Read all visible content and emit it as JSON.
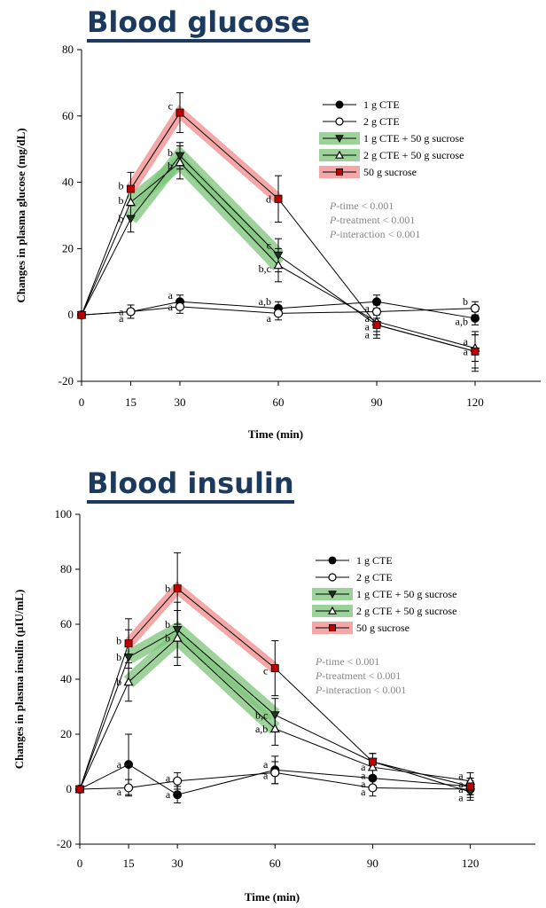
{
  "headings": {
    "glucose": "Blood glucose",
    "insulin": "Blood insulin"
  },
  "colors": {
    "heading": "#1c3a5e",
    "highlight_green": "#7cc47a",
    "highlight_red": "#f08a8a",
    "sucrose_marker": "#c00000"
  },
  "chart_data": [
    {
      "type": "line",
      "title": "Blood glucose",
      "xlabel": "Time (min)",
      "ylabel": "Changes in plasma glucose (mg/dL)",
      "x": [
        0,
        15,
        30,
        60,
        90,
        120
      ],
      "xticks": [
        "0",
        "15",
        "30",
        "60",
        "90",
        "120"
      ],
      "xlim": [
        0,
        140
      ],
      "ylim": [
        -20,
        80
      ],
      "yticks": [
        -20,
        0,
        20,
        40,
        60,
        80
      ],
      "grid": false,
      "legend_position": "top-right",
      "stats": [
        "P-time < 0.001",
        "P-treatment < 0.001",
        "P-interaction < 0.001"
      ],
      "series": [
        {
          "name": "1 g CTE",
          "marker": "circle-filled",
          "values": [
            0,
            1,
            4,
            2,
            4,
            -1
          ],
          "errors": [
            0,
            2,
            2,
            2,
            2,
            2
          ]
        },
        {
          "name": "2 g CTE",
          "marker": "circle-open",
          "values": [
            0,
            1,
            2.5,
            0.5,
            1,
            2
          ],
          "errors": [
            0,
            2,
            2,
            2,
            2,
            2
          ]
        },
        {
          "name": "1 g CTE + 50 g sucrose",
          "marker": "triangle-down-filled",
          "values": [
            0,
            29,
            48,
            18,
            -3,
            -11
          ],
          "errors": [
            0,
            4,
            4,
            5,
            3,
            5
          ],
          "highlight": "green"
        },
        {
          "name": "2 g CTE + 50 g sucrose",
          "marker": "triangle-up-open",
          "values": [
            0,
            34,
            46,
            15,
            -2,
            -10
          ],
          "errors": [
            0,
            4,
            5,
            5,
            3,
            4
          ],
          "highlight": "green"
        },
        {
          "name": "50 g sucrose",
          "marker": "square-filled",
          "values": [
            0,
            38,
            61,
            35,
            -3,
            -11
          ],
          "errors": [
            0,
            5,
            6,
            7,
            4,
            6
          ],
          "highlight": "red"
        }
      ],
      "annotations": [
        {
          "x": 15,
          "y": 39,
          "text": "b"
        },
        {
          "x": 15,
          "y": 34.5,
          "text": "b"
        },
        {
          "x": 15,
          "y": 29,
          "text": "b"
        },
        {
          "x": 15,
          "y": 1,
          "text": "a"
        },
        {
          "x": 15,
          "y": -1,
          "text": "a"
        },
        {
          "x": 30,
          "y": 63,
          "text": "c"
        },
        {
          "x": 30,
          "y": 49,
          "text": "b"
        },
        {
          "x": 30,
          "y": 45,
          "text": "b"
        },
        {
          "x": 30,
          "y": 6,
          "text": "a"
        },
        {
          "x": 30,
          "y": 2.5,
          "text": "a"
        },
        {
          "x": 60,
          "y": 35,
          "text": "d"
        },
        {
          "x": 60,
          "y": 21,
          "text": "c"
        },
        {
          "x": 60,
          "y": 14,
          "text": "b,c"
        },
        {
          "x": 60,
          "y": 4,
          "text": "a,b"
        },
        {
          "x": 60,
          "y": -1,
          "text": "a"
        },
        {
          "x": 90,
          "y": 2,
          "text": "a"
        },
        {
          "x": 90,
          "y": -1,
          "text": "a"
        },
        {
          "x": 90,
          "y": -3.5,
          "text": "a"
        },
        {
          "x": 90,
          "y": -6,
          "text": "a"
        },
        {
          "x": 120,
          "y": 4,
          "text": "b"
        },
        {
          "x": 120,
          "y": -2,
          "text": "a,b"
        },
        {
          "x": 120,
          "y": -8,
          "text": "a"
        },
        {
          "x": 120,
          "y": -11,
          "text": "a"
        }
      ]
    },
    {
      "type": "line",
      "title": "Blood insulin",
      "xlabel": "Time (min)",
      "ylabel": "Changes in plasma insulin (µIU/mL)",
      "x": [
        0,
        15,
        30,
        60,
        90,
        120
      ],
      "xticks": [
        "0",
        "15",
        "30",
        "60",
        "90",
        "120"
      ],
      "xlim": [
        0,
        140
      ],
      "ylim": [
        -20,
        100
      ],
      "yticks": [
        -20,
        0,
        20,
        40,
        60,
        80,
        100
      ],
      "grid": false,
      "legend_position": "top-right",
      "stats": [
        "P-time < 0.001",
        "P-treatment < 0.001",
        "P-interaction < 0.001"
      ],
      "series": [
        {
          "name": "1 g CTE",
          "marker": "circle-filled",
          "values": [
            0,
            9,
            -2,
            7,
            4,
            1
          ],
          "errors": [
            0,
            11,
            3,
            5,
            3,
            3
          ]
        },
        {
          "name": "2 g CTE",
          "marker": "circle-open",
          "values": [
            0,
            0.5,
            3,
            6,
            0.5,
            0
          ],
          "errors": [
            0,
            3,
            3,
            4,
            3,
            3
          ]
        },
        {
          "name": "1 g CTE + 50 g sucrose",
          "marker": "triangle-down-filled",
          "values": [
            0,
            48,
            58,
            27,
            10,
            -1
          ],
          "errors": [
            0,
            10,
            10,
            6,
            3,
            3
          ],
          "highlight": "green"
        },
        {
          "name": "2 g CTE + 50 g sucrose",
          "marker": "triangle-up-open",
          "values": [
            0,
            39,
            55,
            22,
            8,
            3
          ],
          "errors": [
            0,
            7,
            10,
            6,
            3,
            3
          ],
          "highlight": "green"
        },
        {
          "name": "50 g sucrose",
          "marker": "square-filled",
          "values": [
            0,
            53,
            73,
            44,
            10,
            1
          ],
          "errors": [
            0,
            9,
            13,
            10,
            3,
            3
          ],
          "highlight": "red"
        }
      ],
      "annotations": [
        {
          "x": 15,
          "y": 54,
          "text": "b"
        },
        {
          "x": 15,
          "y": 48,
          "text": "b"
        },
        {
          "x": 15,
          "y": 39,
          "text": "b"
        },
        {
          "x": 15,
          "y": 9,
          "text": "a"
        },
        {
          "x": 15,
          "y": -1,
          "text": "a"
        },
        {
          "x": 30,
          "y": 73,
          "text": "b"
        },
        {
          "x": 30,
          "y": 60,
          "text": "b"
        },
        {
          "x": 30,
          "y": 55,
          "text": "b"
        },
        {
          "x": 30,
          "y": 4,
          "text": "a"
        },
        {
          "x": 30,
          "y": -2,
          "text": "a"
        },
        {
          "x": 60,
          "y": 43,
          "text": "c"
        },
        {
          "x": 60,
          "y": 27,
          "text": "b,c"
        },
        {
          "x": 60,
          "y": 22,
          "text": "a,b"
        },
        {
          "x": 60,
          "y": 9,
          "text": "a"
        },
        {
          "x": 60,
          "y": 5,
          "text": "a"
        },
        {
          "x": 90,
          "y": 8,
          "text": "a"
        },
        {
          "x": 90,
          "y": 5,
          "text": "a"
        },
        {
          "x": 90,
          "y": 2,
          "text": "a"
        },
        {
          "x": 90,
          "y": -1,
          "text": "a"
        },
        {
          "x": 120,
          "y": 5,
          "text": "a"
        },
        {
          "x": 120,
          "y": 2,
          "text": "a"
        },
        {
          "x": 120,
          "y": 0,
          "text": "a"
        },
        {
          "x": 120,
          "y": -3,
          "text": "a"
        }
      ]
    }
  ]
}
